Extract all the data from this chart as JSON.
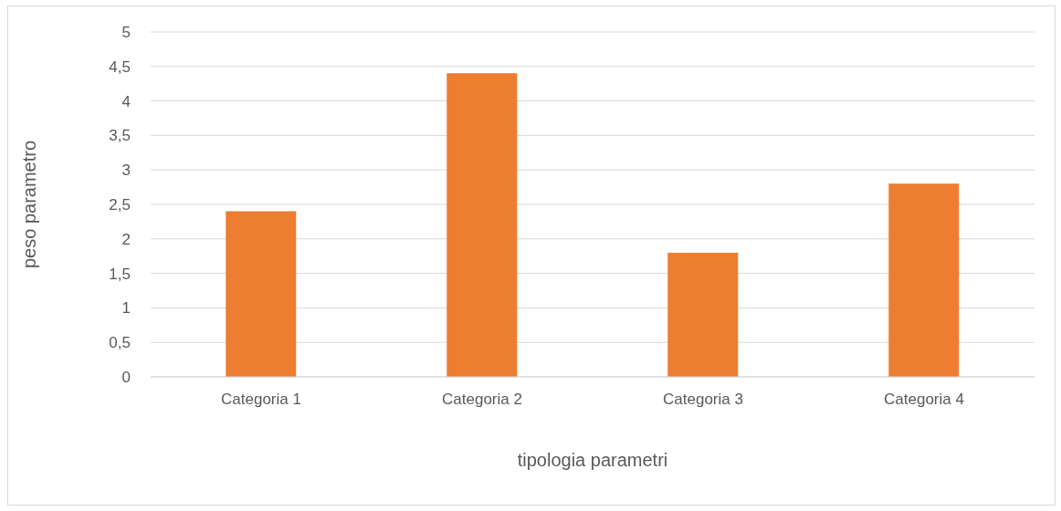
{
  "chart_data": {
    "type": "bar",
    "xlabel": "tipologia parametri",
    "ylabel": "peso parametro",
    "categories": [
      "Categoria 1",
      "Categoria 2",
      "Categoria 3",
      "Categoria 4"
    ],
    "values": [
      2.4,
      4.4,
      1.8,
      2.8
    ],
    "color": "#ed7d31",
    "ylim": [
      0,
      5
    ],
    "yticks": [
      0,
      {
        "value": 0.5,
        "label": "0,5"
      },
      1,
      {
        "value": 1.5,
        "label": "1,5"
      },
      2,
      {
        "value": 2.5,
        "label": "2,5"
      },
      3,
      {
        "value": 3.5,
        "label": "3,5"
      },
      4,
      {
        "value": 4.5,
        "label": "4,5"
      },
      5
    ],
    "grid": "y"
  }
}
